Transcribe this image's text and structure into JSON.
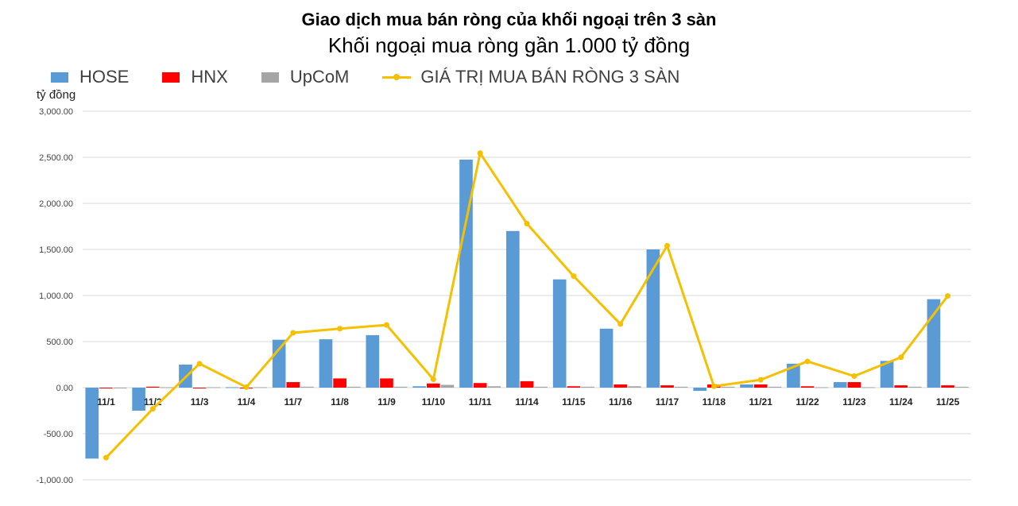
{
  "chart_data": {
    "type": "bar",
    "title": "Giao dịch mua bán ròng của khối ngoại trên 3 sàn",
    "subtitle": "Khối ngoại mua ròng gần 1.000 tỷ đồng",
    "ylabel": "tỷ đồng",
    "ylim": [
      -1000,
      3000
    ],
    "yticks": [
      3000,
      2500,
      2000,
      1500,
      1000,
      500,
      0,
      -500,
      -1000
    ],
    "ytick_labels": [
      "3,000.00",
      "2,500.00",
      "2,000.00",
      "1,500.00",
      "1,000.00",
      "500.00",
      "0.00",
      "-500.00",
      "-1,000.00"
    ],
    "grid": true,
    "legend_position": "top-left",
    "categories": [
      "11/1",
      "11/2",
      "11/3",
      "11/4",
      "11/7",
      "11/8",
      "11/9",
      "11/10",
      "11/11",
      "11/14",
      "11/15",
      "11/16",
      "11/17",
      "11/18",
      "11/21",
      "11/22",
      "11/23",
      "11/24",
      "11/25"
    ],
    "series": [
      {
        "name": "HOSE",
        "type": "bar",
        "color": "#5B9BD5",
        "values": [
          -770,
          -250,
          250,
          5,
          520,
          525,
          570,
          15,
          2475,
          1700,
          1175,
          640,
          1500,
          -35,
          35,
          260,
          60,
          290,
          960
        ]
      },
      {
        "name": "HNX",
        "type": "bar",
        "color": "#FF0000",
        "values": [
          -5,
          10,
          -5,
          0,
          60,
          100,
          100,
          45,
          50,
          70,
          15,
          35,
          25,
          35,
          35,
          15,
          60,
          25,
          25
        ]
      },
      {
        "name": "UpCoM",
        "type": "bar",
        "color": "#A5A5A5",
        "values": [
          -3,
          5,
          5,
          5,
          10,
          10,
          10,
          30,
          15,
          10,
          10,
          15,
          10,
          10,
          10,
          5,
          5,
          10,
          10
        ]
      },
      {
        "name": "GIÁ TRỊ MUA BÁN RÒNG 3 SÀN",
        "type": "line",
        "color": "#F5C000",
        "values": [
          -760,
          -230,
          260,
          5,
          595,
          640,
          680,
          90,
          2545,
          1780,
          1210,
          690,
          1540,
          15,
          85,
          285,
          125,
          330,
          995
        ]
      }
    ]
  }
}
